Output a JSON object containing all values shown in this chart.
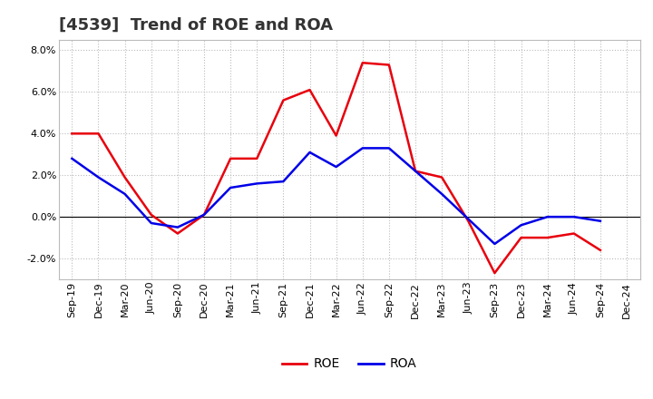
{
  "title": "[4539]  Trend of ROE and ROA",
  "x_labels": [
    "Sep-19",
    "Dec-19",
    "Mar-20",
    "Jun-20",
    "Sep-20",
    "Dec-20",
    "Mar-21",
    "Jun-21",
    "Sep-21",
    "Dec-21",
    "Mar-22",
    "Jun-22",
    "Sep-22",
    "Dec-22",
    "Mar-23",
    "Jun-23",
    "Sep-23",
    "Dec-23",
    "Mar-24",
    "Jun-24",
    "Sep-24",
    "Dec-24"
  ],
  "roe": [
    4.0,
    4.0,
    1.9,
    0.1,
    -0.8,
    0.1,
    2.8,
    2.8,
    5.6,
    6.1,
    3.9,
    7.4,
    7.3,
    2.2,
    1.9,
    -0.2,
    -2.7,
    -1.0,
    -1.0,
    -0.8,
    -1.6,
    null
  ],
  "roa": [
    2.8,
    1.9,
    1.1,
    -0.3,
    -0.5,
    0.1,
    1.4,
    1.6,
    1.7,
    3.1,
    2.4,
    3.3,
    3.3,
    2.2,
    1.1,
    -0.1,
    -1.3,
    -0.4,
    0.0,
    0.0,
    -0.2,
    null
  ],
  "roe_color": "#e8000d",
  "roa_color": "#0000e8",
  "ylim": [
    -3.0,
    8.5
  ],
  "yticks": [
    -2.0,
    0.0,
    2.0,
    4.0,
    6.0,
    8.0
  ],
  "background_color": "#ffffff",
  "plot_bg_color": "#ffffff",
  "grid_color": "#bbbbbb",
  "title_fontsize": 13,
  "axis_fontsize": 8,
  "legend_fontsize": 10
}
